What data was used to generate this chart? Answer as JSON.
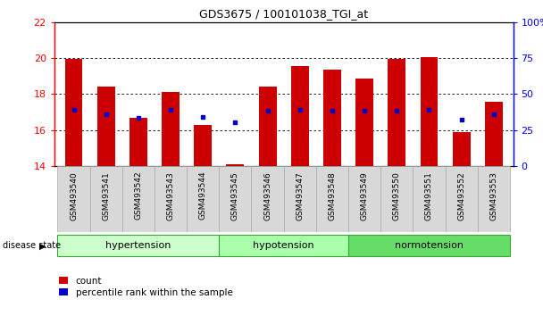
{
  "title": "GDS3675 / 100101038_TGI_at",
  "samples": [
    "GSM493540",
    "GSM493541",
    "GSM493542",
    "GSM493543",
    "GSM493544",
    "GSM493545",
    "GSM493546",
    "GSM493547",
    "GSM493548",
    "GSM493549",
    "GSM493550",
    "GSM493551",
    "GSM493552",
    "GSM493553"
  ],
  "bar_values": [
    19.95,
    18.4,
    16.65,
    18.1,
    16.3,
    14.1,
    18.4,
    19.55,
    19.35,
    18.85,
    19.95,
    20.05,
    15.9,
    17.55
  ],
  "blue_values": [
    17.1,
    16.85,
    16.65,
    17.1,
    16.7,
    16.45,
    17.05,
    17.1,
    17.05,
    17.05,
    17.05,
    17.1,
    16.6,
    16.85
  ],
  "bar_color": "#cc0000",
  "blue_color": "#0000cc",
  "ylim_left": [
    14,
    22
  ],
  "ylim_right": [
    0,
    100
  ],
  "yticks_left": [
    14,
    16,
    18,
    20,
    22
  ],
  "yticks_right": [
    0,
    25,
    50,
    75,
    100
  ],
  "groups": [
    {
      "label": "hypertension",
      "start": 0,
      "end": 4,
      "color": "#ccffcc"
    },
    {
      "label": "hypotension",
      "start": 5,
      "end": 8,
      "color": "#aaffaa"
    },
    {
      "label": "normotension",
      "start": 9,
      "end": 13,
      "color": "#66dd66"
    }
  ],
  "group_label_prefix": "disease state",
  "legend_count_label": "count",
  "legend_percentile_label": "percentile rank within the sample",
  "bar_width": 0.55,
  "base": 14,
  "bg_color": "#f0f0f0"
}
